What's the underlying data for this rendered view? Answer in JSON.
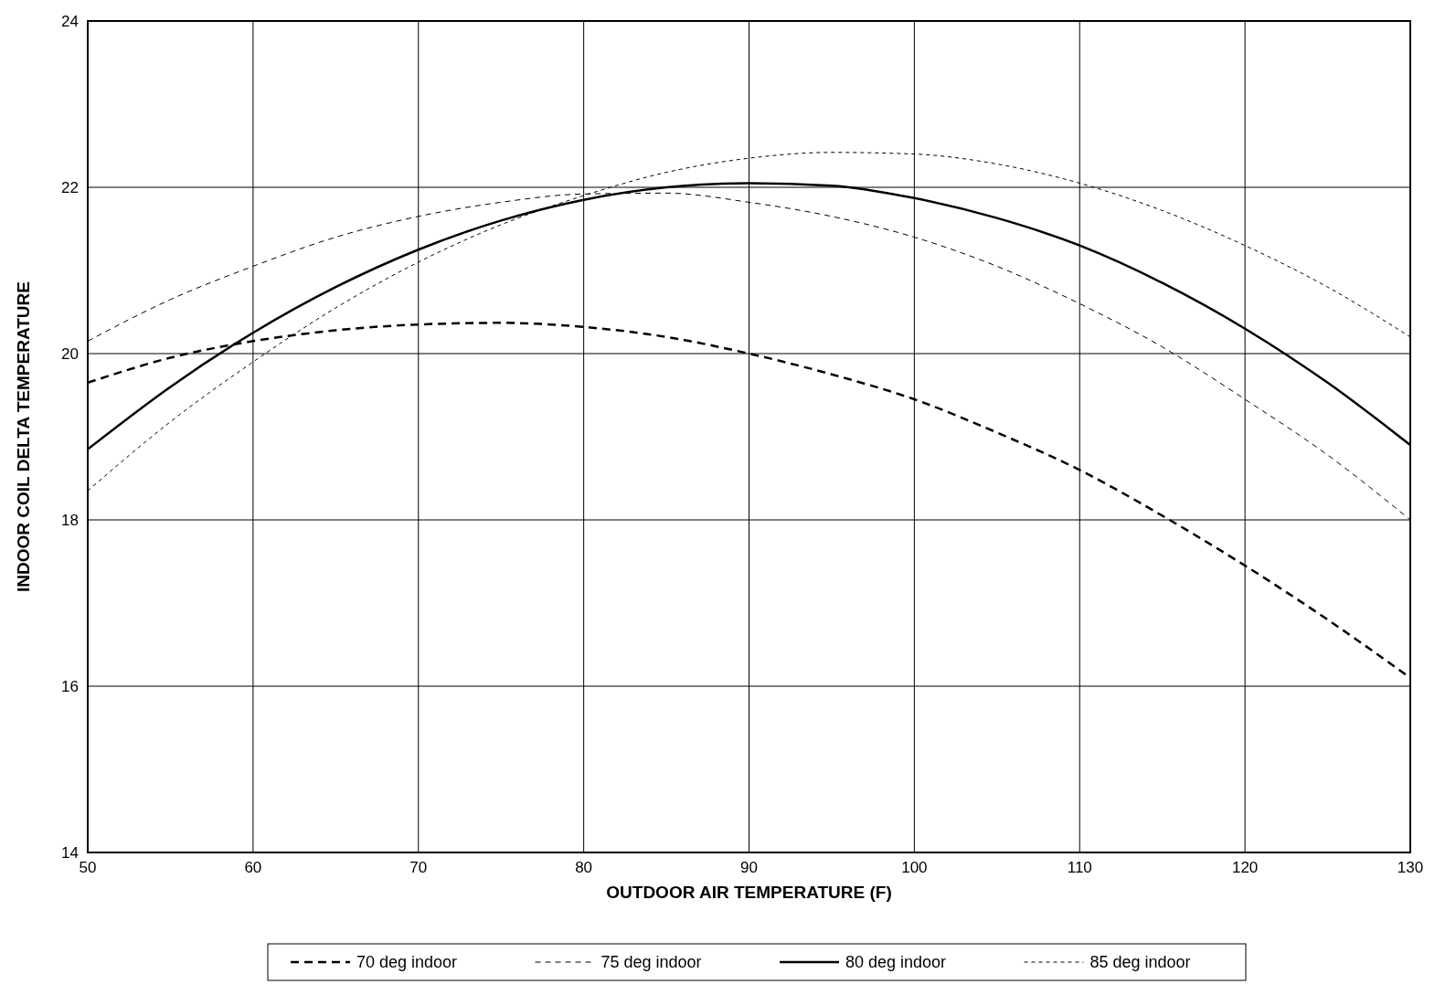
{
  "chart_data": {
    "type": "line",
    "xlabel": "OUTDOOR AIR TEMPERATURE  (F)",
    "ylabel": "INDOOR COIL DELTA TEMPERATURE",
    "xlim": [
      50,
      130
    ],
    "ylim": [
      14,
      24
    ],
    "xticks": [
      50,
      60,
      70,
      80,
      90,
      100,
      110,
      120,
      130
    ],
    "yticks": [
      14,
      16,
      18,
      20,
      22,
      24
    ],
    "grid": true,
    "legend": "bottom",
    "x": [
      50,
      55,
      60,
      65,
      70,
      75,
      80,
      85,
      90,
      95,
      100,
      105,
      110,
      115,
      120,
      125,
      130
    ],
    "series": [
      {
        "name": "70 deg indoor",
        "color": "#000000",
        "line_style": "dashed",
        "values": [
          19.65,
          19.95,
          20.15,
          20.28,
          20.35,
          20.37,
          20.32,
          20.2,
          20.0,
          19.75,
          19.45,
          19.05,
          18.6,
          18.05,
          17.45,
          16.8,
          16.1
        ]
      },
      {
        "name": "75 deg indoor",
        "color": "#000000",
        "line_style": "dashed",
        "values": [
          20.15,
          20.65,
          21.05,
          21.4,
          21.65,
          21.82,
          21.92,
          21.93,
          21.82,
          21.65,
          21.4,
          21.05,
          20.6,
          20.08,
          19.45,
          18.78,
          18.0
        ]
      },
      {
        "name": "80 deg indoor",
        "color": "#000000",
        "line_style": "solid",
        "values": [
          18.85,
          19.6,
          20.25,
          20.8,
          21.25,
          21.6,
          21.85,
          22.0,
          22.05,
          22.02,
          21.87,
          21.63,
          21.3,
          20.85,
          20.3,
          19.65,
          18.9
        ]
      },
      {
        "name": "85 deg indoor",
        "color": "#000000",
        "line_style": "dotted",
        "values": [
          18.35,
          19.18,
          19.9,
          20.55,
          21.1,
          21.55,
          21.9,
          22.18,
          22.35,
          22.42,
          22.4,
          22.28,
          22.05,
          21.72,
          21.3,
          20.8,
          20.2
        ]
      }
    ]
  }
}
